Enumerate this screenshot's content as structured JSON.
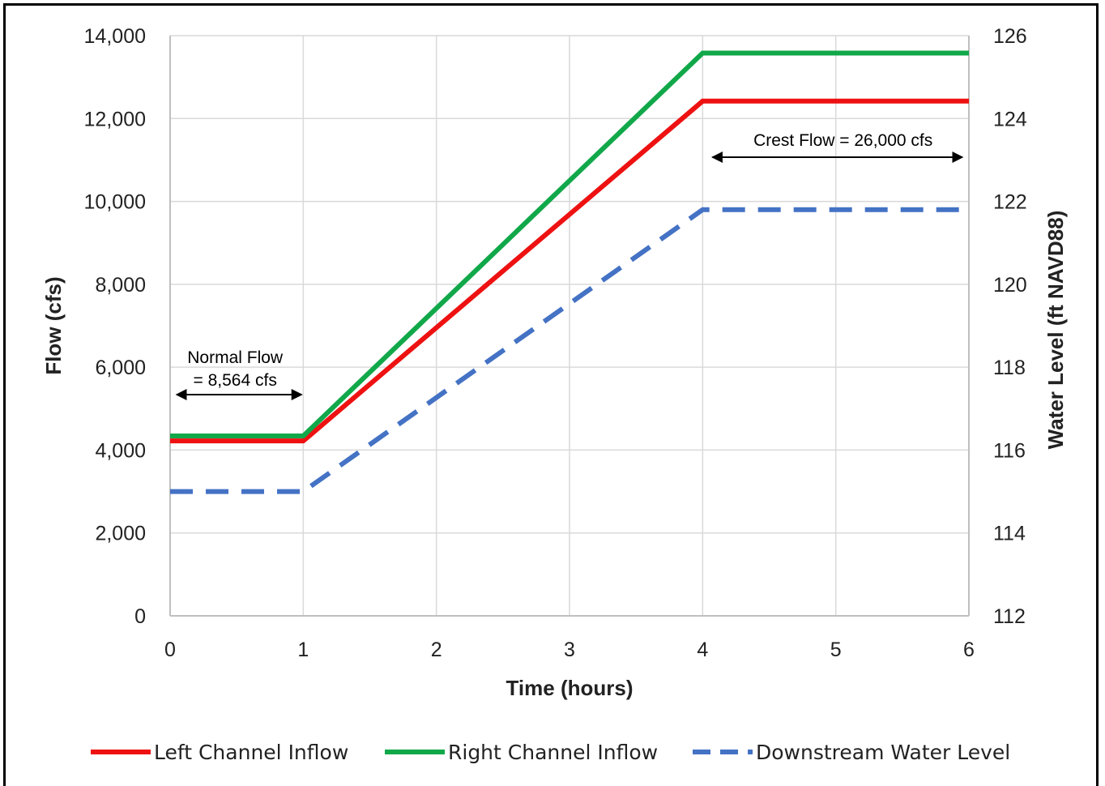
{
  "chart_data": {
    "type": "line",
    "xlabel": "Time (hours)",
    "ylabel": "Flow (cfs)",
    "y2label": "Water Level (ft NAVD88)",
    "xlim": [
      0,
      6
    ],
    "ylim": [
      0,
      14000
    ],
    "y2lim": [
      112,
      126
    ],
    "x_ticks": [
      "0",
      "1",
      "2",
      "3",
      "4",
      "5",
      "6"
    ],
    "y_ticks": [
      "0",
      "2,000",
      "4,000",
      "6,000",
      "8,000",
      "10,000",
      "12,000",
      "14,000"
    ],
    "y2_ticks": [
      "112",
      "114",
      "116",
      "118",
      "120",
      "122",
      "124",
      "126"
    ],
    "grid": true,
    "legend_position": "bottom",
    "series": [
      {
        "name": "Left Channel Inflow",
        "axis": "left",
        "style": "solid",
        "color": "#ee1111",
        "x": [
          0,
          1,
          4,
          6
        ],
        "values": [
          4220,
          4220,
          12420,
          12420
        ]
      },
      {
        "name": "Right Channel Inflow",
        "axis": "left",
        "style": "solid",
        "color": "#11a84a",
        "x": [
          0,
          1,
          4,
          6
        ],
        "values": [
          4340,
          4340,
          13580,
          13580
        ]
      },
      {
        "name": "Downstream Water Level",
        "axis": "right",
        "style": "dashed",
        "color": "#4472c4",
        "x": [
          0,
          1,
          4,
          6
        ],
        "values": [
          115.0,
          115.0,
          121.8,
          121.8
        ]
      }
    ],
    "annotations": [
      {
        "lines": [
          "Normal Flow",
          "= 8,564 cfs"
        ],
        "arrow_from_x": 0,
        "arrow_to_x": 1
      },
      {
        "lines": [
          "Crest Flow = 26,000 cfs"
        ],
        "arrow_from_x": 4,
        "arrow_to_x": 6
      }
    ]
  },
  "colors": {
    "grid": "#d9d9d9",
    "axis": "#bfbfbf",
    "frame": "#000000"
  }
}
